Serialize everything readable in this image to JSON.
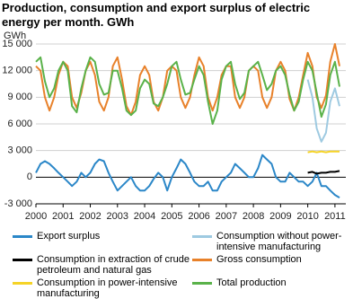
{
  "chart_data": {
    "type": "line",
    "title": "Production, consumption and export surplus of electric energy per month. GWh",
    "y_label": "GWh",
    "x": [
      2000,
      2000.17,
      2000.33,
      2000.5,
      2000.67,
      2000.83,
      2001,
      2001.17,
      2001.33,
      2001.5,
      2001.67,
      2001.83,
      2002,
      2002.17,
      2002.33,
      2002.5,
      2002.67,
      2002.83,
      2003,
      2003.17,
      2003.33,
      2003.5,
      2003.67,
      2003.83,
      2004,
      2004.17,
      2004.33,
      2004.5,
      2004.67,
      2004.83,
      2005,
      2005.17,
      2005.33,
      2005.5,
      2005.67,
      2005.83,
      2006,
      2006.17,
      2006.33,
      2006.5,
      2006.67,
      2006.83,
      2007,
      2007.17,
      2007.33,
      2007.5,
      2007.67,
      2007.83,
      2008,
      2008.17,
      2008.33,
      2008.5,
      2008.67,
      2008.83,
      2009,
      2009.17,
      2009.33,
      2009.5,
      2009.67,
      2009.83,
      2010,
      2010.17,
      2010.33,
      2010.5,
      2010.67,
      2010.83,
      2011,
      2011.17
    ],
    "series": [
      {
        "name": "Export surplus",
        "color": "#2b87c8",
        "values": [
          500,
          1500,
          1800,
          1500,
          1000,
          500,
          0,
          -500,
          -1000,
          -500,
          500,
          0,
          500,
          1500,
          2000,
          1800,
          500,
          -500,
          -1500,
          -1000,
          -500,
          0,
          -1000,
          -1500,
          -1500,
          -1000,
          -200,
          500,
          0,
          -1500,
          0,
          1000,
          2000,
          1500,
          500,
          -500,
          -1000,
          -1000,
          -500,
          -1500,
          -1500,
          -500,
          0,
          500,
          1500,
          1000,
          500,
          0,
          0,
          1000,
          2500,
          2000,
          1500,
          0,
          -500,
          -500,
          500,
          0,
          -500,
          -500,
          -1000,
          -500,
          500,
          -1000,
          -1000,
          -1500,
          -2000,
          -2300
        ]
      },
      {
        "name": "Consumption without power-intensive manufacturing",
        "color": "#9ecae1",
        "values": [
          null,
          null,
          null,
          null,
          null,
          null,
          null,
          null,
          null,
          null,
          null,
          null,
          null,
          null,
          null,
          null,
          null,
          null,
          null,
          null,
          null,
          null,
          null,
          null,
          null,
          null,
          null,
          null,
          null,
          null,
          null,
          null,
          null,
          null,
          null,
          null,
          null,
          null,
          null,
          null,
          null,
          null,
          null,
          null,
          null,
          null,
          null,
          null,
          null,
          null,
          null,
          null,
          null,
          null,
          null,
          null,
          null,
          null,
          null,
          null,
          11000,
          9000,
          5500,
          4000,
          5000,
          8500,
          10000,
          8000
        ]
      },
      {
        "name": "Consumption in extraction of crude petroleum and natural gas",
        "color": "#000000",
        "values": [
          null,
          null,
          null,
          null,
          null,
          null,
          null,
          null,
          null,
          null,
          null,
          null,
          null,
          null,
          null,
          null,
          null,
          null,
          null,
          null,
          null,
          null,
          null,
          null,
          null,
          null,
          null,
          null,
          null,
          null,
          null,
          null,
          null,
          null,
          null,
          null,
          null,
          null,
          null,
          null,
          null,
          null,
          null,
          null,
          null,
          null,
          null,
          null,
          null,
          null,
          null,
          null,
          null,
          null,
          null,
          null,
          null,
          null,
          null,
          null,
          500,
          600,
          400,
          500,
          500,
          600,
          600,
          700
        ]
      },
      {
        "name": "Gross consumption",
        "color": "#e8812a",
        "values": [
          12500,
          12000,
          9000,
          7500,
          9000,
          11500,
          13000,
          12500,
          9000,
          7800,
          9500,
          12000,
          13000,
          11500,
          8500,
          7500,
          9000,
          12500,
          13500,
          11000,
          8000,
          7000,
          8500,
          11500,
          12500,
          11500,
          8500,
          7500,
          9000,
          12000,
          12500,
          12000,
          9000,
          7800,
          9000,
          11500,
          13500,
          12500,
          9000,
          7500,
          9000,
          11500,
          12500,
          12500,
          9000,
          7800,
          9000,
          12000,
          12500,
          12000,
          9000,
          7800,
          9000,
          12000,
          13000,
          12000,
          8800,
          7500,
          9000,
          11500,
          14000,
          12500,
          9000,
          7800,
          9200,
          13000,
          15000,
          12500
        ]
      },
      {
        "name": "Consumption in power-intensive manufacturing",
        "color": "#f5d327",
        "values": [
          null,
          null,
          null,
          null,
          null,
          null,
          null,
          null,
          null,
          null,
          null,
          null,
          null,
          null,
          null,
          null,
          null,
          null,
          null,
          null,
          null,
          null,
          null,
          null,
          null,
          null,
          null,
          null,
          null,
          null,
          null,
          null,
          null,
          null,
          null,
          null,
          null,
          null,
          null,
          null,
          null,
          null,
          null,
          null,
          null,
          null,
          null,
          null,
          null,
          null,
          null,
          null,
          null,
          null,
          null,
          null,
          null,
          null,
          null,
          null,
          2800,
          2900,
          2800,
          2900,
          2800,
          2900,
          2900,
          2900
        ]
      },
      {
        "name": "Total production",
        "color": "#5ab24a",
        "values": [
          13000,
          13500,
          10800,
          9000,
          10000,
          12000,
          13000,
          12000,
          8000,
          7300,
          10000,
          12000,
          13500,
          13000,
          10500,
          9300,
          9500,
          12000,
          12000,
          10000,
          7500,
          7000,
          7500,
          10000,
          11000,
          10500,
          8300,
          8000,
          9000,
          10500,
          12500,
          13000,
          11000,
          9300,
          9500,
          11000,
          12500,
          11500,
          8500,
          6000,
          7500,
          11000,
          12500,
          13000,
          10500,
          8800,
          9500,
          12000,
          12500,
          13000,
          11500,
          9800,
          10500,
          12000,
          12500,
          11500,
          9300,
          7500,
          8500,
          11000,
          13000,
          12000,
          9500,
          6800,
          8200,
          11500,
          13000,
          10200
        ]
      }
    ],
    "xlim": [
      2000,
      2011.4
    ],
    "xticks": [
      2000,
      2001,
      2002,
      2003,
      2004,
      2005,
      2006,
      2007,
      2008,
      2009,
      2010,
      2011
    ],
    "ylim": [
      -3000,
      15000
    ],
    "yticks": [
      {
        "value": -3000,
        "label": "-3 000"
      },
      0,
      {
        "value": 3000,
        "label": "3 000"
      },
      {
        "value": 6000,
        "label": "6 000"
      },
      {
        "value": 9000,
        "label": "9 000"
      },
      {
        "value": 12000,
        "label": "12 000"
      },
      {
        "value": 15000,
        "label": "15 000"
      }
    ],
    "grid": true
  }
}
